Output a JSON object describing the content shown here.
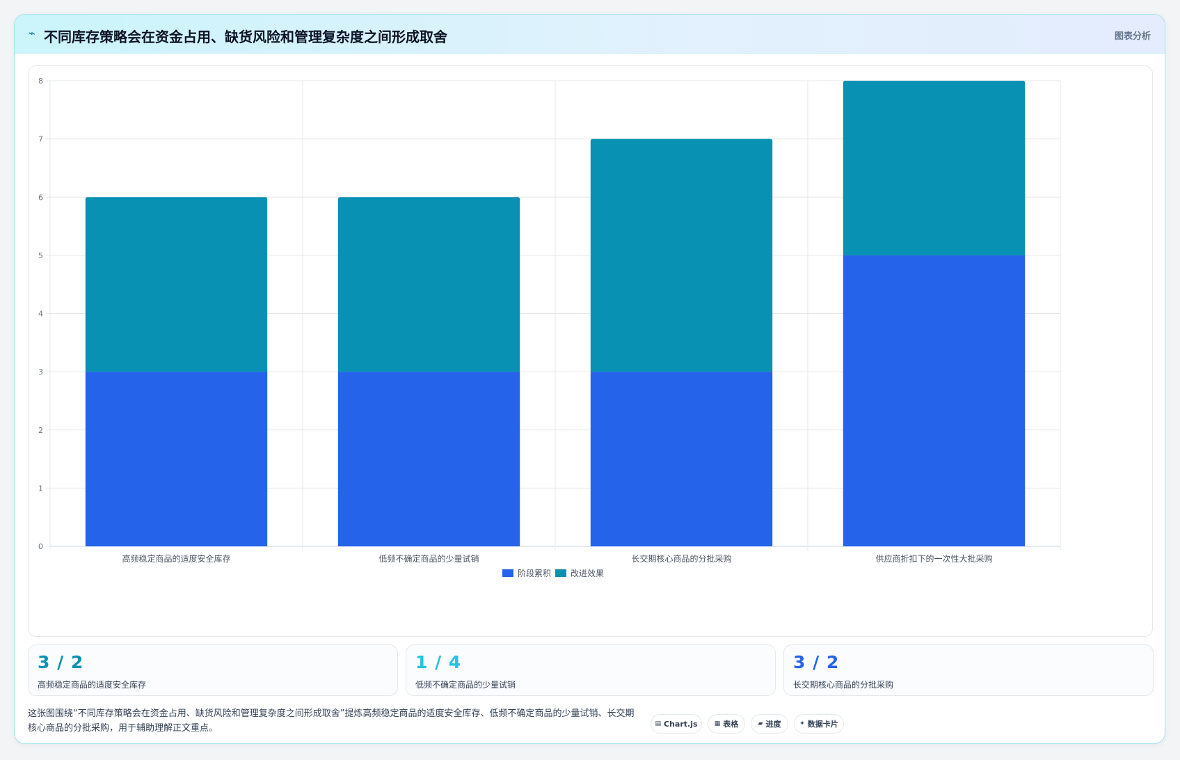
{
  "header": {
    "icon": "wave-icon",
    "title": "不同库存策略会在资金占用、缺货风险和管理复杂度之间形成取舍",
    "tag": "图表分析"
  },
  "chart_data": {
    "type": "bar",
    "stacked": true,
    "categories": [
      "高频稳定商品的适度安全库存",
      "低频不确定商品的少量试销",
      "长交期核心商品的分批采购",
      "供应商折扣下的一次性大批采购"
    ],
    "series": [
      {
        "name": "阶段累积",
        "values": [
          3,
          3,
          3,
          5
        ],
        "color": "#2563eb"
      },
      {
        "name": "改进效果",
        "values": [
          3,
          3,
          4,
          3
        ],
        "color": "#0891b2"
      }
    ],
    "ylim": [
      0,
      8
    ],
    "yticks": [
      "0",
      "1",
      "2",
      "3",
      "4",
      "5",
      "6",
      "7",
      "8"
    ],
    "grid": true,
    "legend": "bottom"
  },
  "stats": [
    {
      "value": "3 / 2",
      "label": "高频稳定商品的适度安全库存",
      "color": "#0891b2"
    },
    {
      "value": "1 / 4",
      "label": "低频不确定商品的少量试销",
      "color": "#22c3e0"
    },
    {
      "value": "3 / 2",
      "label": "长交期核心商品的分批采购",
      "color": "#2563eb"
    }
  ],
  "footer": {
    "text": "这张图围绕“不同库存策略会在资金占用、缺货风险和管理复杂度之间形成取舍”提炼高频稳定商品的适度安全库存、低频不确定商品的少量试销、长交期核心商品的分批采购，用于辅助理解正文重点。",
    "pills": [
      {
        "icon": "chart-icon",
        "glyph": "▤",
        "label": "Chart.js"
      },
      {
        "icon": "table-icon",
        "glyph": "▦",
        "label": "表格"
      },
      {
        "icon": "progress-icon",
        "glyph": "▰",
        "label": "进度"
      },
      {
        "icon": "sparkle-icon",
        "glyph": "✦",
        "label": "数据卡片"
      }
    ]
  }
}
